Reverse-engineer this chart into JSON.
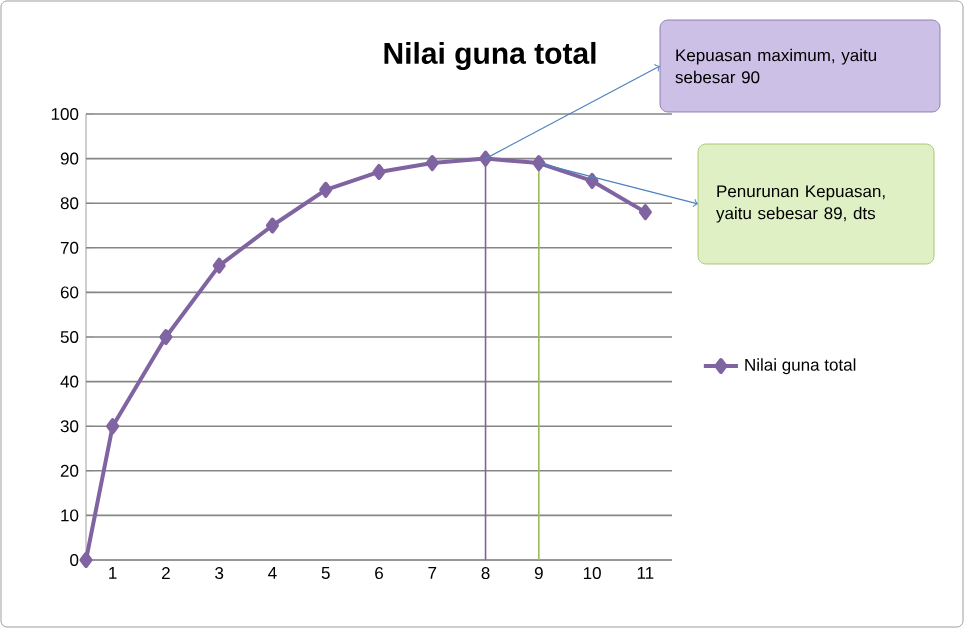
{
  "chart_data": {
    "type": "line",
    "title": "Nilai guna total",
    "x": [
      0.5,
      1,
      2,
      3,
      4,
      5,
      6,
      7,
      8,
      9,
      10,
      11
    ],
    "series": [
      {
        "name": "Nilai guna total",
        "color": "#8064a2",
        "values": [
          0,
          30,
          50,
          66,
          75,
          83,
          87,
          89,
          90,
          89,
          85,
          78
        ]
      }
    ],
    "xlim": [
      0.5,
      11.5
    ],
    "xticks": [
      1,
      2,
      3,
      4,
      5,
      6,
      7,
      8,
      9,
      10,
      11
    ],
    "ylim": [
      0,
      100
    ],
    "yticks": [
      0,
      10,
      20,
      30,
      40,
      50,
      60,
      70,
      80,
      90,
      100
    ],
    "grid": "y",
    "legend": "right",
    "marker": "diamond",
    "line_style": "solid",
    "ref_lines": [
      {
        "axis": "x",
        "value": 8,
        "color": "#8064a2"
      },
      {
        "axis": "x",
        "value": 9,
        "color": "#9bbb59"
      }
    ],
    "annotations": [
      {
        "text": "Kepuasan maximum, yaitu sebesar 90",
        "x": 8,
        "y": 90
      },
      {
        "text": "Penurunan Kepuasan, yaitu sebesar 89, dts",
        "x": 9,
        "y": 89
      }
    ]
  }
}
